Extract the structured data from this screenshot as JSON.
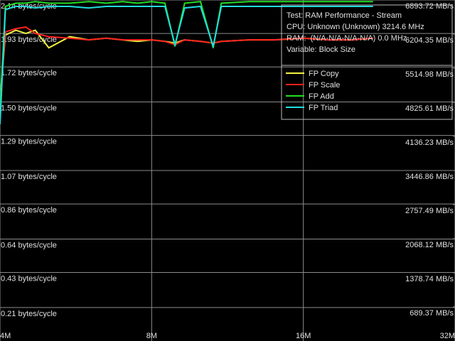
{
  "chart_data": {
    "type": "line",
    "x": [
      4,
      4.1,
      4.3,
      4.5,
      4.7,
      5,
      5.5,
      6,
      6.5,
      7,
      7.5,
      8,
      8.5,
      8.9,
      9.3,
      10,
      10.6,
      11,
      12.5,
      14,
      16,
      18,
      20,
      22
    ],
    "series": [
      {
        "name": "FP Copy",
        "color": "#f0f040",
        "values": [
          1.52,
          1.92,
          1.95,
          1.93,
          1.95,
          1.84,
          1.91,
          1.89,
          1.9,
          1.89,
          1.88,
          1.89,
          1.88,
          1.87,
          1.89,
          1.88,
          1.87,
          1.88,
          1.89,
          1.89,
          1.9,
          1.89,
          1.89,
          1.9
        ]
      },
      {
        "name": "FP Scale",
        "color": "#ff2020",
        "values": [
          1.5,
          1.94,
          1.96,
          1.97,
          1.93,
          1.91,
          1.9,
          1.89,
          1.9,
          1.89,
          1.89,
          1.89,
          1.88,
          1.86,
          1.89,
          1.88,
          1.87,
          1.88,
          1.89,
          1.89,
          1.9,
          1.89,
          1.89,
          1.9
        ]
      },
      {
        "name": "FP Add",
        "color": "#22dd22",
        "values": [
          1.45,
          2.1,
          2.12,
          2.12,
          2.13,
          2.12,
          2.12,
          2.13,
          2.12,
          2.13,
          2.12,
          2.13,
          2.12,
          1.85,
          2.12,
          2.13,
          1.84,
          2.12,
          2.13,
          2.13,
          2.13,
          2.13,
          2.13,
          2.13
        ]
      },
      {
        "name": "FP Triad",
        "color": "#22dddd",
        "values": [
          1.36,
          2.08,
          2.1,
          2.1,
          2.09,
          2.1,
          2.1,
          2.09,
          2.1,
          2.1,
          2.1,
          2.1,
          2.1,
          1.86,
          2.09,
          2.1,
          1.85,
          2.1,
          2.1,
          2.1,
          2.1,
          2.1,
          2.1,
          2.1
        ]
      }
    ],
    "xscale": "log",
    "xlim": [
      4,
      32
    ],
    "xticks": [
      {
        "value": 4,
        "label": "4M"
      },
      {
        "value": 8,
        "label": "8M"
      },
      {
        "value": 16,
        "label": "16M"
      },
      {
        "value": 32,
        "label": "32M"
      }
    ],
    "ylim": [
      0,
      2.14
    ],
    "yticks": [
      {
        "value": 0.21,
        "label": "0.21 bytes/cycle"
      },
      {
        "value": 0.43,
        "label": "0.43 bytes/cycle"
      },
      {
        "value": 0.64,
        "label": "0.64 bytes/cycle"
      },
      {
        "value": 0.86,
        "label": "0.86 bytes/cycle"
      },
      {
        "value": 1.07,
        "label": "1.07 bytes/cycle"
      },
      {
        "value": 1.29,
        "label": "1.29 bytes/cycle"
      },
      {
        "value": 1.5,
        "label": "1.50 bytes/cycle"
      },
      {
        "value": 1.72,
        "label": "1.72 bytes/cycle"
      },
      {
        "value": 1.93,
        "label": "1.93 bytes/cycle"
      },
      {
        "value": 2.14,
        "label": "2.14 bytes/cycle"
      }
    ],
    "y2lim": [
      0,
      6893.72
    ],
    "y2ticks": [
      {
        "value": 689.37,
        "label": "689.37 MB/s"
      },
      {
        "value": 1378.74,
        "label": "1378.74 MB/s"
      },
      {
        "value": 2068.12,
        "label": "2068.12 MB/s"
      },
      {
        "value": 2757.49,
        "label": "2757.49 MB/s"
      },
      {
        "value": 3446.86,
        "label": "3446.86 MB/s"
      },
      {
        "value": 4136.23,
        "label": "4136.23 MB/s"
      },
      {
        "value": 4825.61,
        "label": "4825.61 MB/s"
      },
      {
        "value": 5514.98,
        "label": "5514.98 MB/s"
      },
      {
        "value": 6204.35,
        "label": "6204.35 MB/s"
      },
      {
        "value": 6893.72,
        "label": "6893.72 MB/s"
      }
    ],
    "grid": true,
    "annotations": [
      "Test: RAM Performance - Stream",
      "CPU: Unknown (Unknown) 3214.6 MHz",
      "RAM:  (N/A-N/A-N/A-N/A) 0.0 MHz",
      "Variable: Block Size"
    ]
  }
}
